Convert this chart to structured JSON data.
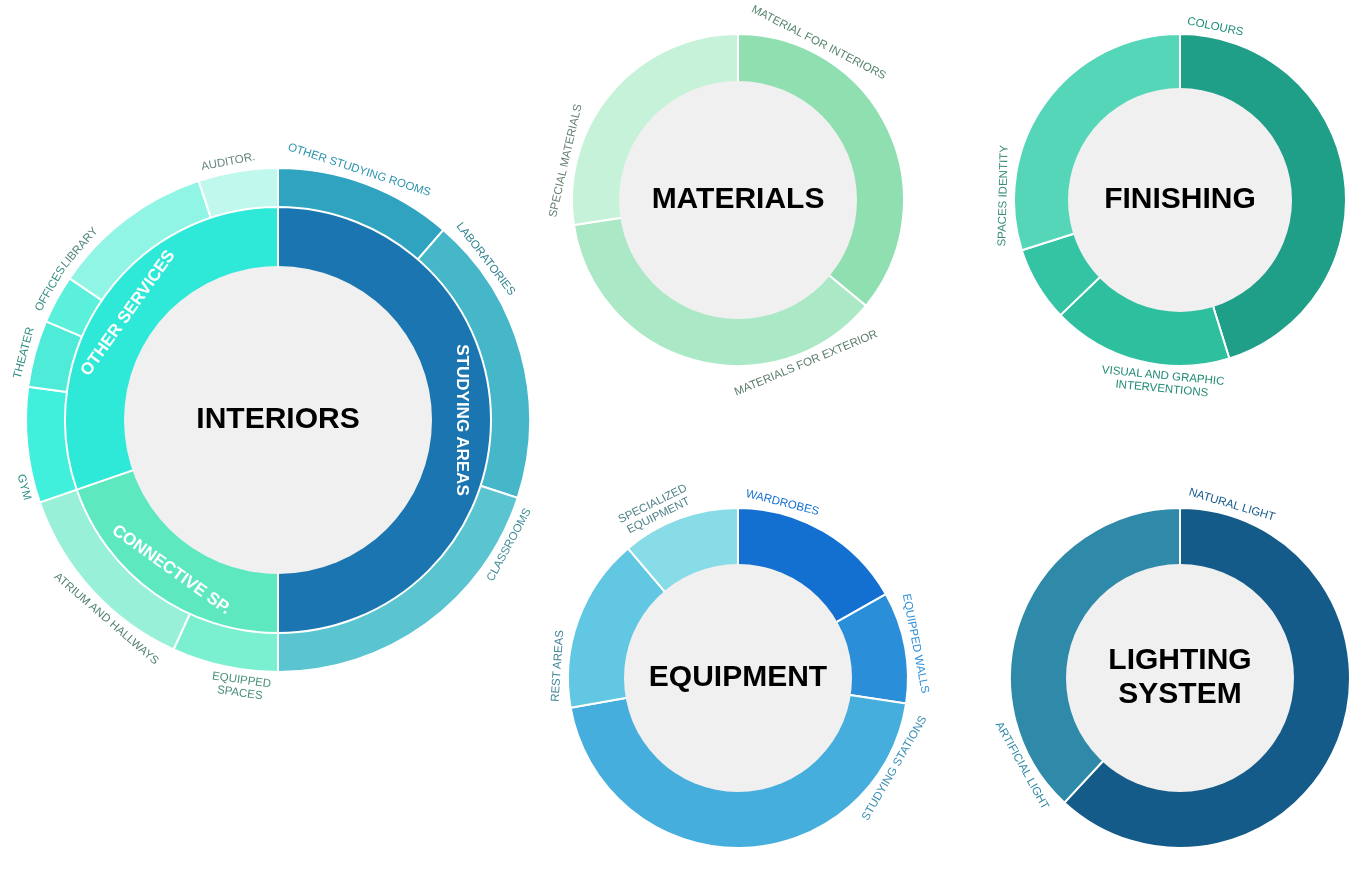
{
  "chart_data": [
    {
      "type": "donut",
      "categories": [
        "OTHER STUDYING ROOMS",
        "LABORATORIES",
        "CLASSROOMS",
        "EQUIPPED SPACES",
        "ATRIUM AND HALLWAYS",
        "GYM",
        "THEATER",
        "OFFICES",
        "LIBRARY",
        "AUDITOR."
      ],
      "values": [
        11.4,
        18.6,
        20,
        6.8,
        12.9,
        7.4,
        4.3,
        3.1,
        10.4,
        5.1
      ],
      "colors": [
        "#30a3c0",
        "#46b7c8",
        "#5ac4d0",
        "#7af0d0",
        "#98f0d8",
        "#40f0dc",
        "#4eecd8",
        "#5af0dc",
        "#90f5e4",
        "#c0f8ee"
      ]
    },
    {
      "type": "donut",
      "title": "INTERIORS",
      "categories": [
        "STUDYING AREAS",
        "CONNECTIVE SP.",
        "OTHER SERVICES"
      ],
      "values": [
        50,
        19.7,
        30.3
      ],
      "colors": [
        "#1b75b0",
        "#5ee8c0",
        "#2ee8d8"
      ]
    },
    {
      "type": "donut",
      "title": "MATERIALS",
      "categories": [
        "MATERIAL FOR INTERIORS",
        "MATERIALS FOR EXTERIOR",
        "SPECIAL MATERIALS"
      ],
      "values": [
        36,
        36.6,
        27.4
      ],
      "colors": [
        "#90dfb0",
        "#abe9c6",
        "#c5f2d8"
      ]
    },
    {
      "type": "donut",
      "title": "FINISHING",
      "categories": [
        "COLOURS",
        "VISUAL AND GRAPHIC INTERVENTIONS",
        null,
        "SPACES IDENTITY"
      ],
      "values": [
        45.2,
        17.6,
        7.3,
        29.9
      ],
      "colors": [
        "#1f9e88",
        "#2ebf9f",
        "#34c4a4",
        "#56d6b8"
      ]
    },
    {
      "type": "donut",
      "title": "EQUIPMENT",
      "categories": [
        "WARDROBES",
        "EQUIPPED WALLS",
        "STUDYING STATIONS",
        "REST AREAS",
        "SPECIALIZED EQUIPMENT"
      ],
      "values": [
        16.8,
        10.6,
        44.8,
        16.6,
        11.2
      ],
      "colors": [
        "#1470d0",
        "#2a8ed8",
        "#45aedd",
        "#62c7e3",
        "#88dce8"
      ]
    },
    {
      "type": "donut",
      "title": "LIGHTING SYSTEM",
      "categories": [
        "NATURAL LIGHT",
        "ARTIFICIAL LIGHT"
      ],
      "values": [
        61.9,
        38.1
      ],
      "colors": [
        "#155b8a",
        "#2e8aa8"
      ]
    }
  ]
}
